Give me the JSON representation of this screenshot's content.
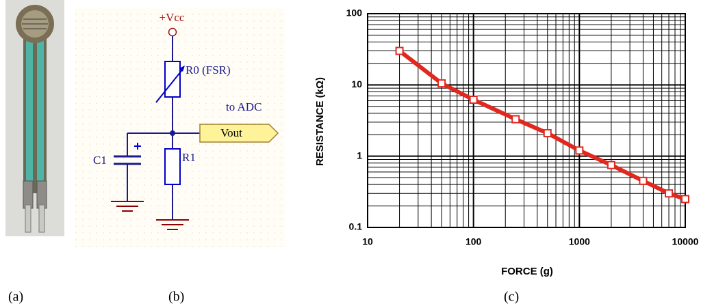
{
  "panel_labels": [
    "(a)",
    "(b)",
    "(c)"
  ],
  "circuit": {
    "supply": "+Vcc",
    "sensor": "R0 (FSR)",
    "output_note": "to ADC",
    "output": "Vout",
    "capacitor": "C1",
    "resistor": "R1"
  },
  "chart_data": {
    "type": "line",
    "x_label": "FORCE (g)",
    "y_label": "RESISTANCE (kΩ)",
    "xlog": true,
    "ylog": true,
    "grid": true,
    "minor_grid": true,
    "xlim": [
      10,
      10000
    ],
    "ylim": [
      0.1,
      100
    ],
    "xticks": [
      10,
      100,
      1000,
      10000
    ],
    "yticks": [
      0.1,
      1,
      10,
      100
    ],
    "series": [
      {
        "color": "#e0281e",
        "x": [
          20,
          50,
          100,
          250,
          500,
          1000,
          2000,
          4000,
          7000,
          10000
        ],
        "values": [
          30,
          10.5,
          6.2,
          3.3,
          2.1,
          1.2,
          0.75,
          0.45,
          0.3,
          0.25
        ]
      }
    ]
  }
}
